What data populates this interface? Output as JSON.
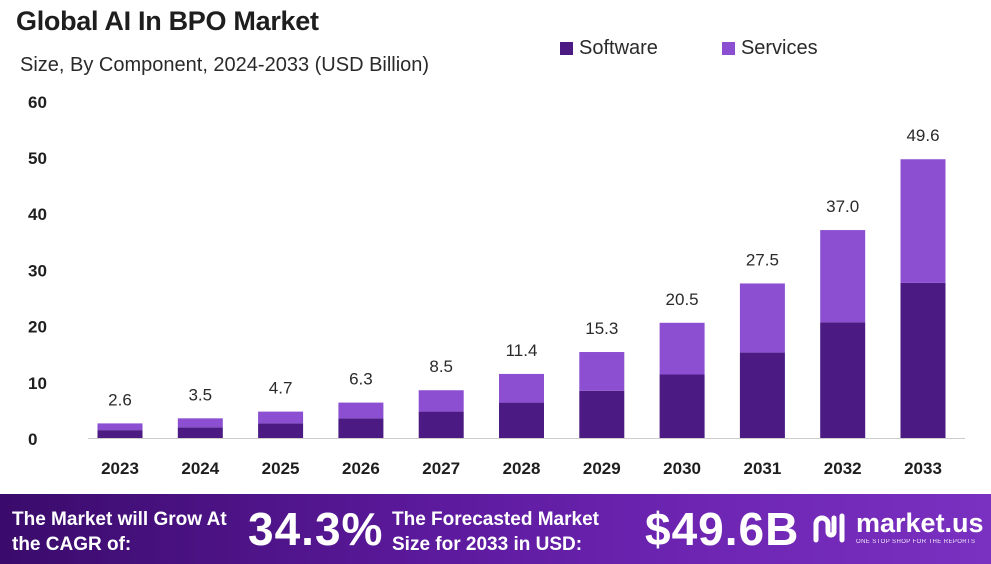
{
  "title": "Global AI In BPO Market",
  "subtitle": "Size, By Component, 2024-2033 (USD Billion)",
  "colors": {
    "software": "#4b1a82",
    "services": "#8d4fd2",
    "footer_start": "#3a0b6b",
    "footer_end": "#7a30c0",
    "axis": "#cccccc",
    "text": "#2a2a2a"
  },
  "legend": [
    {
      "label": "Software",
      "color": "#4b1a82"
    },
    {
      "label": "Services",
      "color": "#8d4fd2"
    }
  ],
  "footer": {
    "cagr_text": "The Market will Grow At the CAGR of:",
    "cagr_value": "34.3%",
    "forecast_text": "The Forecasted Market Size for 2033 in USD:",
    "forecast_value": "$49.6B",
    "brand_name": "market.us",
    "brand_tagline": "ONE STOP SHOP FOR THE REPORTS",
    "brand_icon": "market-us-logo-icon"
  },
  "chart_data": {
    "type": "bar",
    "stacked": true,
    "categories": [
      "2023",
      "2024",
      "2025",
      "2026",
      "2027",
      "2028",
      "2029",
      "2030",
      "2031",
      "2032",
      "2033"
    ],
    "totals": [
      "2.6",
      "3.5",
      "4.7",
      "6.3",
      "8.5",
      "11.4",
      "15.3",
      "20.5",
      "27.5",
      "37.0",
      "49.6"
    ],
    "series": [
      {
        "name": "Software",
        "values": [
          1.4,
          1.9,
          2.6,
          3.5,
          4.7,
          6.3,
          8.4,
          11.3,
          15.2,
          20.6,
          27.6
        ]
      },
      {
        "name": "Services",
        "values": [
          1.2,
          1.6,
          2.1,
          2.8,
          3.8,
          5.1,
          6.9,
          9.2,
          12.3,
          16.4,
          22.0
        ]
      }
    ],
    "yticks": [
      "0",
      "10",
      "20",
      "30",
      "40",
      "50",
      "60"
    ],
    "ylim": [
      0,
      60
    ],
    "grid": false,
    "legend_position": "top-right"
  }
}
